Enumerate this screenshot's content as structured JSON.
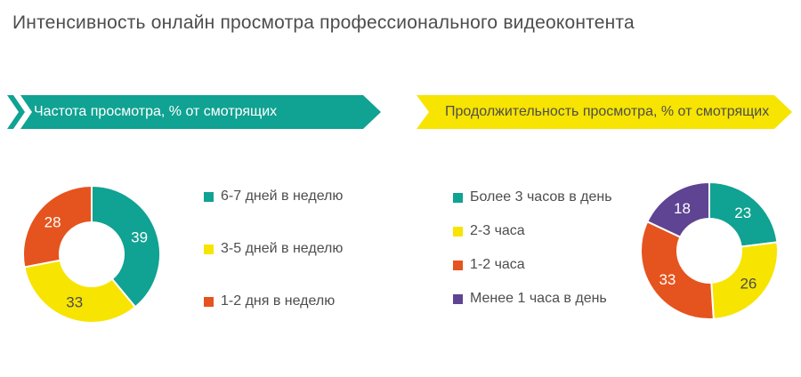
{
  "title": "Интенсивность онлайн просмотра профессионального видеоконтента",
  "banner_colors": {
    "left_bg": "#10a292",
    "left_text": "#ffffff",
    "right_bg": "#f7e400",
    "right_text": "#4d4d4d"
  },
  "chart_data": [
    {
      "type": "pie",
      "variant": "donut",
      "title": "Частота просмотра, % от смотрящих",
      "unit": "% от смотрящих",
      "categories": [
        "6-7 дней в неделю",
        "3-5 дней в неделю",
        "1-2 дня в неделю"
      ],
      "values": [
        39,
        33,
        28
      ],
      "colors": [
        "#10a292",
        "#f7e400",
        "#e5541e"
      ],
      "value_label_colors": [
        "#ffffff",
        "#4d4d4d",
        "#ffffff"
      ],
      "start_angle_deg": 0,
      "direction": "clockwise",
      "legend_position": "right-of-donut"
    },
    {
      "type": "pie",
      "variant": "donut",
      "title": "Продолжительность просмотра, % от смотрящих",
      "unit": "% от смотрящих",
      "categories": [
        "Более 3 часов в день",
        "2-3 часа",
        "1-2 часа",
        "Менее 1 часа в день"
      ],
      "values": [
        23,
        26,
        33,
        18
      ],
      "colors": [
        "#10a292",
        "#f7e400",
        "#e5541e",
        "#5e4493"
      ],
      "value_label_colors": [
        "#ffffff",
        "#4d4d4d",
        "#ffffff",
        "#ffffff"
      ],
      "start_angle_deg": 0,
      "direction": "clockwise",
      "legend_position": "left-of-donut"
    }
  ]
}
